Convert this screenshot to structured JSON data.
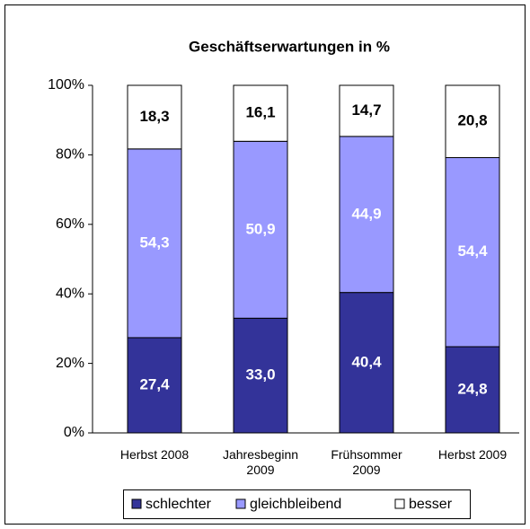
{
  "chart_data": {
    "type": "stacked_bar",
    "title": "Geschäftserwartungen in %",
    "categories": [
      "Herbst 2008",
      "Jahresbeginn 2009",
      "Frühsommer 2009",
      "Herbst 2009"
    ],
    "series": [
      {
        "name": "schlechter",
        "color": "#333399",
        "label_color": "#ffffff",
        "values": [
          27.4,
          33.0,
          40.4,
          24.8
        ],
        "value_labels": [
          "27,4",
          "33,0",
          "40,4",
          "24,8"
        ]
      },
      {
        "name": "gleichbleibend",
        "color": "#9999ff",
        "label_color": "#ffffff",
        "values": [
          54.3,
          50.9,
          44.9,
          54.4
        ],
        "value_labels": [
          "54,3",
          "50,9",
          "44,9",
          "54,4"
        ]
      },
      {
        "name": "besser",
        "color": "#ffffff",
        "label_color": "#000000",
        "values": [
          18.3,
          16.1,
          14.7,
          20.8
        ],
        "value_labels": [
          "18,3",
          "16,1",
          "14,7",
          "20,8"
        ]
      }
    ],
    "ylim": [
      0,
      100
    ],
    "yticks": [
      {
        "value": 0,
        "label": "0%"
      },
      {
        "value": 20,
        "label": "20%"
      },
      {
        "value": 40,
        "label": "40%"
      },
      {
        "value": 60,
        "label": "60%"
      },
      {
        "value": 80,
        "label": "80%"
      },
      {
        "value": 100,
        "label": "100%"
      }
    ],
    "legend": "bottom"
  }
}
